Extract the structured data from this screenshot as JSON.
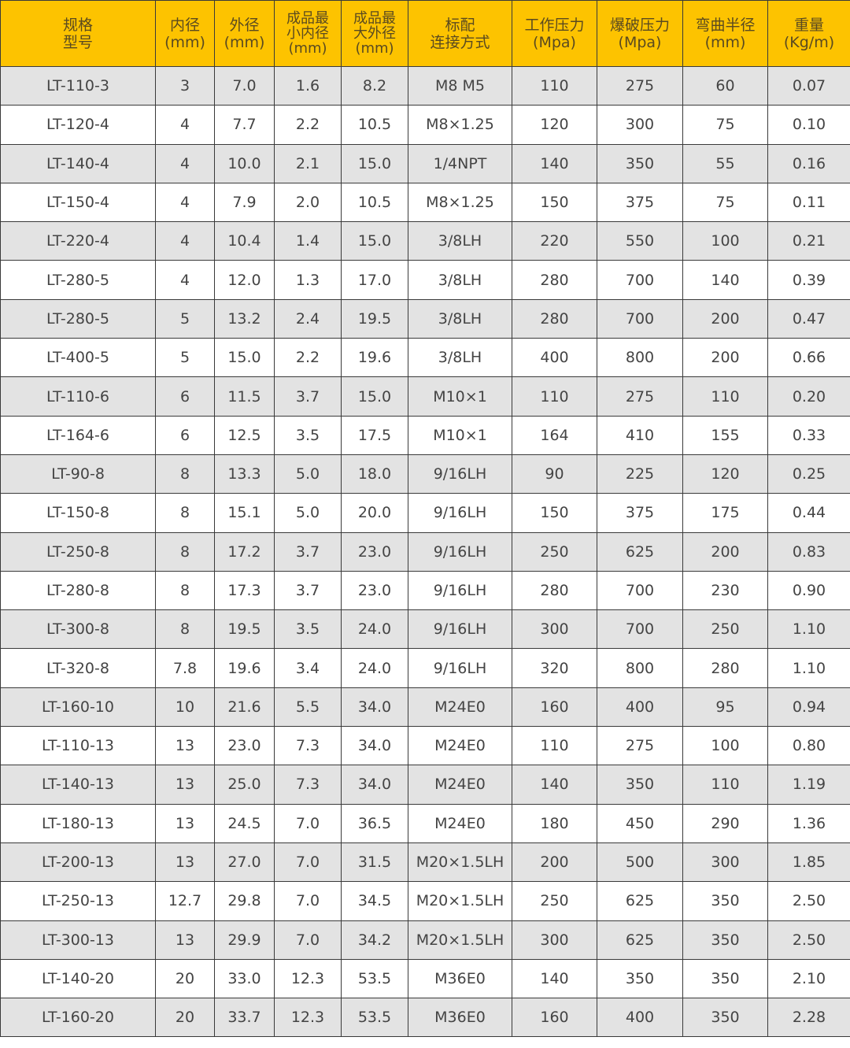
{
  "table": {
    "header_color": "#fdc300",
    "columns": [
      [
        "规格",
        "型号"
      ],
      [
        "内径",
        "(mm)"
      ],
      [
        "外径",
        "(mm)"
      ],
      [
        "成品最",
        "小内径",
        "(mm)"
      ],
      [
        "成品最",
        "大外径",
        "(mm)"
      ],
      [
        "标配",
        "连接方式"
      ],
      [
        "工作压力",
        "(Mpa)"
      ],
      [
        "爆破压力",
        "(Mpa)"
      ],
      [
        "弯曲半径",
        "(mm)"
      ],
      [
        "重量",
        "(Kg/m)"
      ]
    ],
    "rows": [
      [
        "LT-110-3",
        "3",
        "7.0",
        "1.6",
        "8.2",
        "M8  M5",
        "110",
        "275",
        "60",
        "0.07"
      ],
      [
        "LT-120-4",
        "4",
        "7.7",
        "2.2",
        "10.5",
        "M8×1.25",
        "120",
        "300",
        "75",
        "0.10"
      ],
      [
        "LT-140-4",
        "4",
        "10.0",
        "2.1",
        "15.0",
        "1/4NPT",
        "140",
        "350",
        "55",
        "0.16"
      ],
      [
        "LT-150-4",
        "4",
        "7.9",
        "2.0",
        "10.5",
        "M8×1.25",
        "150",
        "375",
        "75",
        "0.11"
      ],
      [
        "LT-220-4",
        "4",
        "10.4",
        "1.4",
        "15.0",
        "3/8LH",
        "220",
        "550",
        "100",
        "0.21"
      ],
      [
        "LT-280-5",
        "4",
        "12.0",
        "1.3",
        "17.0",
        "3/8LH",
        "280",
        "700",
        "140",
        "0.39"
      ],
      [
        "LT-280-5",
        "5",
        "13.2",
        "2.4",
        "19.5",
        "3/8LH",
        "280",
        "700",
        "200",
        "0.47"
      ],
      [
        "LT-400-5",
        "5",
        "15.0",
        "2.2",
        "19.6",
        "3/8LH",
        "400",
        "800",
        "200",
        "0.66"
      ],
      [
        "LT-110-6",
        "6",
        "11.5",
        "3.7",
        "15.0",
        "M10×1",
        "110",
        "275",
        "110",
        "0.20"
      ],
      [
        "LT-164-6",
        "6",
        "12.5",
        "3.5",
        "17.5",
        "M10×1",
        "164",
        "410",
        "155",
        "0.33"
      ],
      [
        "LT-90-8",
        "8",
        "13.3",
        "5.0",
        "18.0",
        "9/16LH",
        "90",
        "225",
        "120",
        "0.25"
      ],
      [
        "LT-150-8",
        "8",
        "15.1",
        "5.0",
        "20.0",
        "9/16LH",
        "150",
        "375",
        "175",
        "0.44"
      ],
      [
        "LT-250-8",
        "8",
        "17.2",
        "3.7",
        "23.0",
        "9/16LH",
        "250",
        "625",
        "200",
        "0.83"
      ],
      [
        "LT-280-8",
        "8",
        "17.3",
        "3.7",
        "23.0",
        "9/16LH",
        "280",
        "700",
        "230",
        "0.90"
      ],
      [
        "LT-300-8",
        "8",
        "19.5",
        "3.5",
        "24.0",
        "9/16LH",
        "300",
        "700",
        "250",
        "1.10"
      ],
      [
        "LT-320-8",
        "7.8",
        "19.6",
        "3.4",
        "24.0",
        "9/16LH",
        "320",
        "800",
        "280",
        "1.10"
      ],
      [
        "LT-160-10",
        "10",
        "21.6",
        "5.5",
        "34.0",
        "M24E0",
        "160",
        "400",
        "95",
        "0.94"
      ],
      [
        "LT-110-13",
        "13",
        "23.0",
        "7.3",
        "34.0",
        "M24E0",
        "110",
        "275",
        "100",
        "0.80"
      ],
      [
        "LT-140-13",
        "13",
        "25.0",
        "7.3",
        "34.0",
        "M24E0",
        "140",
        "350",
        "110",
        "1.19"
      ],
      [
        "LT-180-13",
        "13",
        "24.5",
        "7.0",
        "36.5",
        "M24E0",
        "180",
        "450",
        "290",
        "1.36"
      ],
      [
        "LT-200-13",
        "13",
        "27.0",
        "7.0",
        "31.5",
        "M20×1.5LH",
        "200",
        "500",
        "300",
        "1.85"
      ],
      [
        "LT-250-13",
        "12.7",
        "29.8",
        "7.0",
        "34.5",
        "M20×1.5LH",
        "250",
        "625",
        "350",
        "2.50"
      ],
      [
        "LT-300-13",
        "13",
        "29.9",
        "7.0",
        "34.2",
        "M20×1.5LH",
        "300",
        "625",
        "350",
        "2.50"
      ],
      [
        "LT-140-20",
        "20",
        "33.0",
        "12.3",
        "53.5",
        "M36E0",
        "140",
        "350",
        "350",
        "2.10"
      ],
      [
        "LT-160-20",
        "20",
        "33.7",
        "12.3",
        "53.5",
        "M36E0",
        "160",
        "400",
        "350",
        "2.28"
      ]
    ]
  }
}
